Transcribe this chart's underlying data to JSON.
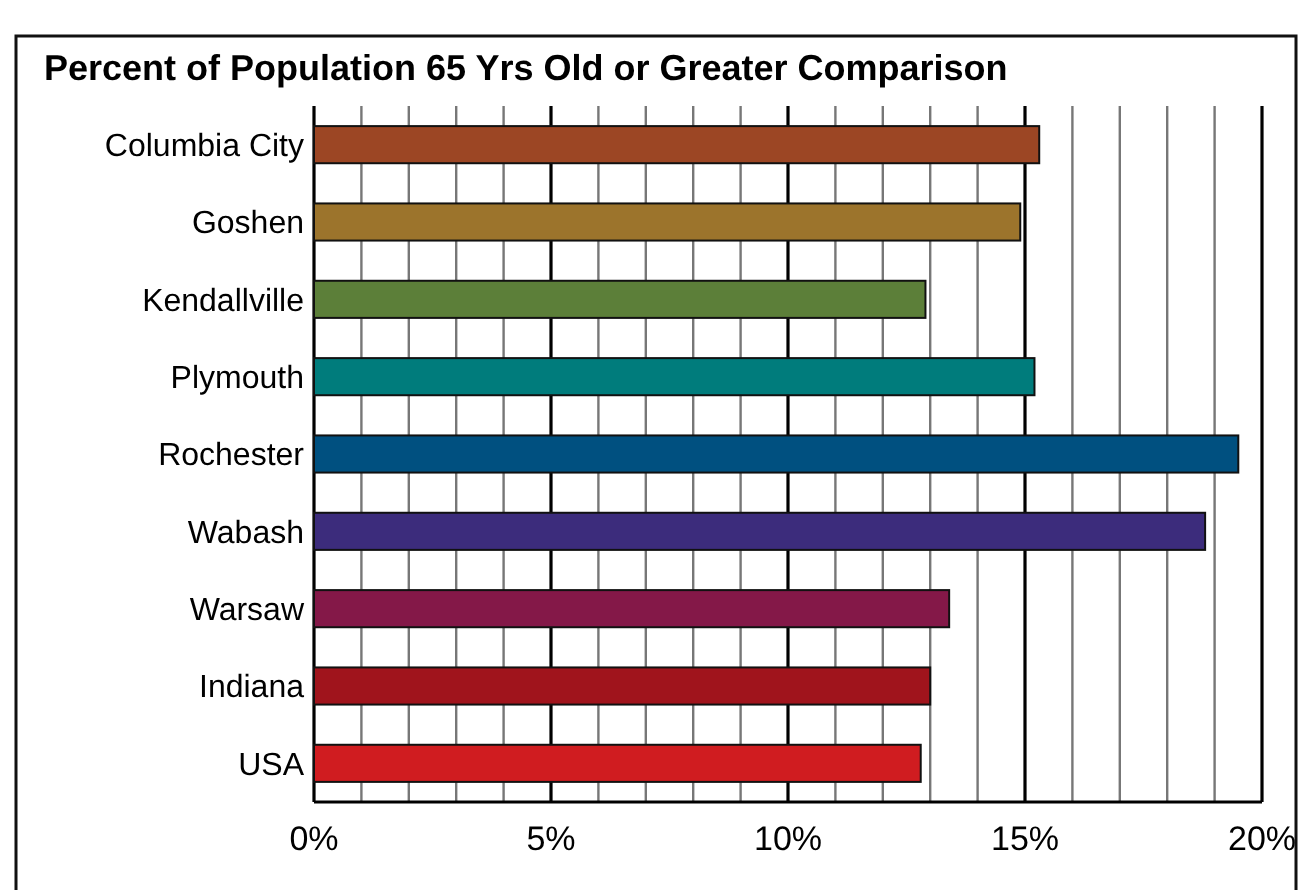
{
  "chart_data": {
    "type": "bar",
    "orientation": "horizontal",
    "title": "Percent of Population 65 Yrs Old or Greater Comparison",
    "categories": [
      "Columbia City",
      "Goshen",
      "Kendallville",
      "Plymouth",
      "Rochester",
      "Wabash",
      "Warsaw",
      "Indiana",
      "USA"
    ],
    "values": [
      15.3,
      14.9,
      12.9,
      15.2,
      19.5,
      18.8,
      13.4,
      13.0,
      12.8
    ],
    "colors": [
      "#9c4624",
      "#9c742c",
      "#5c7f39",
      "#007c7c",
      "#005080",
      "#3c2c7c",
      "#841848",
      "#a0141c",
      "#d01c20"
    ],
    "xlim": [
      0,
      20
    ],
    "xticks": [
      {
        "value": 0,
        "label": "0%"
      },
      {
        "value": 1,
        "label": null
      },
      {
        "value": 2,
        "label": null
      },
      {
        "value": 3,
        "label": null
      },
      {
        "value": 4,
        "label": null
      },
      {
        "value": 5,
        "label": "5%"
      },
      {
        "value": 6,
        "label": null
      },
      {
        "value": 7,
        "label": null
      },
      {
        "value": 8,
        "label": null
      },
      {
        "value": 9,
        "label": null
      },
      {
        "value": 10,
        "label": "10%"
      },
      {
        "value": 11,
        "label": null
      },
      {
        "value": 12,
        "label": null
      },
      {
        "value": 13,
        "label": null
      },
      {
        "value": 14,
        "label": null
      },
      {
        "value": 15,
        "label": "15%"
      },
      {
        "value": 16,
        "label": null
      },
      {
        "value": 17,
        "label": null
      },
      {
        "value": 18,
        "label": null
      },
      {
        "value": 19,
        "label": null
      },
      {
        "value": 20,
        "label": "20%"
      }
    ],
    "grid": "x"
  }
}
